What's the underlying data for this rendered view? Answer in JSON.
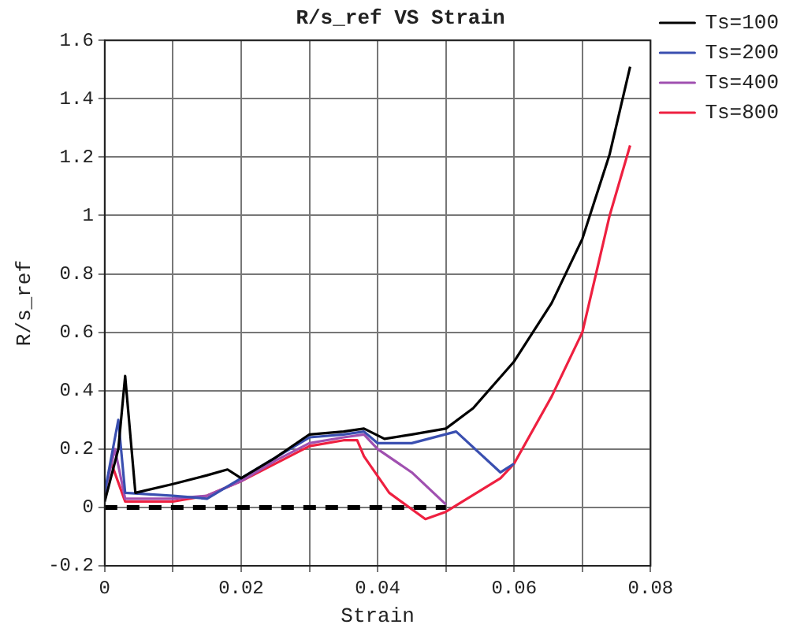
{
  "chart_data": {
    "type": "line",
    "title": "R/s_ref VS Strain",
    "xlabel": "Strain",
    "ylabel": "R/s_ref",
    "xlim": [
      0,
      0.08
    ],
    "xticks": [
      0,
      {
        "value": 0.01,
        "label": null
      },
      0.02,
      {
        "value": 0.03,
        "label": null
      },
      0.04,
      {
        "value": 0.05,
        "label": null
      },
      0.06,
      {
        "value": 0.07,
        "label": null
      },
      0.08
    ],
    "ylim": [
      -0.2,
      1.6
    ],
    "yticks": [
      -0.2,
      0,
      0.2,
      0.4,
      0.6,
      0.8,
      1,
      1.2,
      1.4,
      1.6
    ],
    "grid": true,
    "legend": "top right",
    "marker": "none",
    "line_style": "solid",
    "series": [
      {
        "name": "Ts=100",
        "color": "#000000",
        "x": [
          0,
          0.002,
          0.003,
          0.0045,
          0.01,
          0.015,
          0.018,
          0.02,
          0.025,
          0.03,
          0.035,
          0.038,
          0.041,
          0.045,
          0.05,
          0.054,
          0.06,
          0.0655,
          0.07,
          0.074,
          0.077
        ],
        "values": [
          0.02,
          0.2,
          0.45,
          0.05,
          0.08,
          0.11,
          0.13,
          0.1,
          0.17,
          0.25,
          0.26,
          0.27,
          0.235,
          0.25,
          0.27,
          0.34,
          0.5,
          0.7,
          0.92,
          1.21,
          1.51
        ]
      },
      {
        "name": "Ts=200",
        "color": "#3a4fb0",
        "x": [
          0,
          0.002,
          0.003,
          0.01,
          0.015,
          0.02,
          0.025,
          0.03,
          0.035,
          0.038,
          0.04,
          0.045,
          0.0515,
          0.058,
          0.06
        ],
        "values": [
          0.05,
          0.3,
          0.05,
          0.04,
          0.03,
          0.1,
          0.17,
          0.24,
          0.25,
          0.26,
          0.22,
          0.22,
          0.26,
          0.12,
          0.15
        ]
      },
      {
        "name": "Ts=400",
        "color": "#a050b0",
        "x": [
          0,
          0.0015,
          0.003,
          0.01,
          0.015,
          0.02,
          0.025,
          0.03,
          0.035,
          0.038,
          0.04,
          0.045,
          0.05
        ],
        "values": [
          0.05,
          0.2,
          0.03,
          0.03,
          0.04,
          0.09,
          0.16,
          0.22,
          0.24,
          0.25,
          0.2,
          0.12,
          0.01
        ]
      },
      {
        "name": "Ts=800",
        "color": "#ee2040",
        "x": [
          0.001,
          0.003,
          0.01,
          0.015,
          0.02,
          0.025,
          0.03,
          0.035,
          0.037,
          0.038,
          0.0417,
          0.047,
          0.05,
          0.058,
          0.06,
          0.0655,
          0.07,
          0.074,
          0.077
        ],
        "values": [
          0.15,
          0.02,
          0.02,
          0.04,
          0.09,
          0.15,
          0.21,
          0.23,
          0.23,
          0.175,
          0.05,
          -0.04,
          -0.015,
          0.1,
          0.15,
          0.38,
          0.6,
          1.0,
          1.24
        ]
      },
      {
        "color": "#000000",
        "line_style": "dashed",
        "x": [
          0,
          0.05
        ],
        "values": [
          0,
          0
        ]
      }
    ]
  }
}
